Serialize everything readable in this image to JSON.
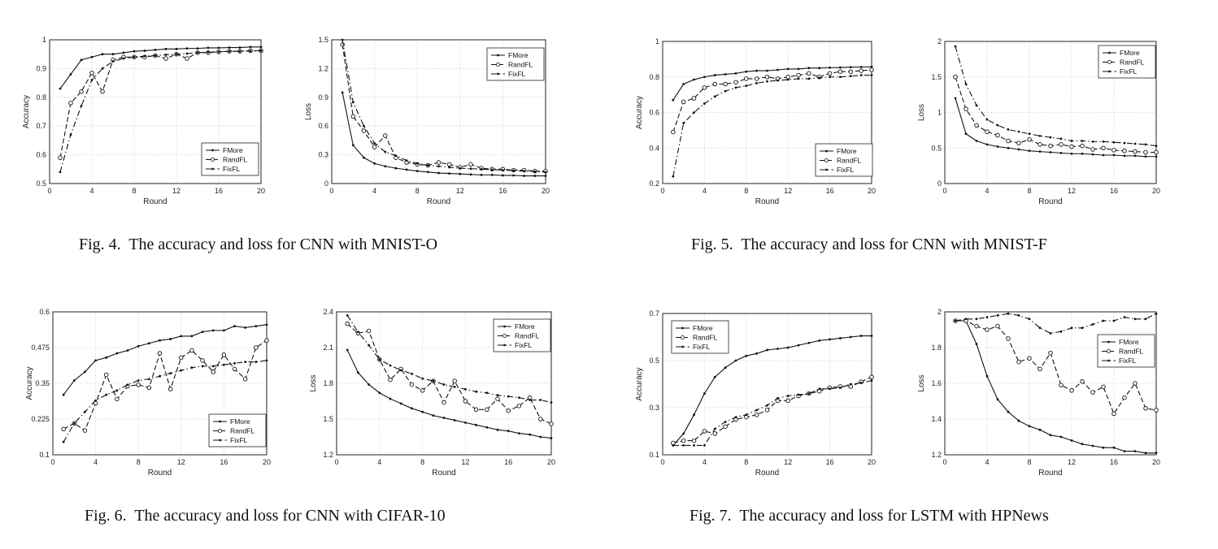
{
  "figures": [
    {
      "caption": "Fig. 4.  The accuracy and loss for CNN with MNIST-O"
    },
    {
      "caption": "Fig. 5.  The accuracy and loss for CNN with MNIST-F"
    },
    {
      "caption": "Fig. 6.  The accuracy and loss for CNN with CIFAR-10"
    },
    {
      "caption": "Fig. 7.  The accuracy and loss for LSTM with HPNews"
    }
  ],
  "chart_data": [
    {
      "type": "line",
      "title": "",
      "xlabel": "Round",
      "ylabel": "Accuracy",
      "xlim": [
        0,
        20
      ],
      "ylim": [
        0.5,
        1
      ],
      "xticks": [
        0,
        4,
        8,
        12,
        16,
        20
      ],
      "yticks": [
        0.5,
        0.6,
        0.7,
        0.8,
        0.9,
        1
      ],
      "ytick_labels": [
        "0.5",
        "0.6",
        "0.7",
        "0.8",
        "0.9",
        "1"
      ],
      "grid": true,
      "legend": "bottom-right",
      "x": [
        1,
        2,
        3,
        4,
        5,
        6,
        7,
        8,
        9,
        10,
        11,
        12,
        13,
        14,
        15,
        16,
        17,
        18,
        19,
        20
      ],
      "series": [
        {
          "name": "FMore",
          "values": [
            0.83,
            0.88,
            0.93,
            0.94,
            0.95,
            0.95,
            0.955,
            0.96,
            0.962,
            0.965,
            0.968,
            0.968,
            0.97,
            0.97,
            0.972,
            0.972,
            0.973,
            0.973,
            0.975,
            0.975
          ]
        },
        {
          "name": "RandFL",
          "values": [
            0.59,
            0.78,
            0.82,
            0.885,
            0.82,
            0.93,
            0.94,
            0.94,
            0.94,
            0.945,
            0.935,
            0.95,
            0.935,
            0.955,
            0.955,
            0.958,
            0.96,
            0.96,
            0.962,
            0.962
          ]
        },
        {
          "name": "FixFL",
          "values": [
            0.54,
            0.67,
            0.77,
            0.86,
            0.9,
            0.925,
            0.935,
            0.94,
            0.943,
            0.945,
            0.948,
            0.95,
            0.952,
            0.955,
            0.957,
            0.958,
            0.96,
            0.96,
            0.961,
            0.962
          ]
        }
      ]
    },
    {
      "type": "line",
      "title": "",
      "xlabel": "Round",
      "ylabel": "Loss",
      "xlim": [
        0,
        20
      ],
      "ylim": [
        0,
        1.5
      ],
      "xticks": [
        0,
        4,
        8,
        12,
        16,
        20
      ],
      "yticks": [
        0,
        0.3,
        0.6,
        0.9,
        1.2,
        1.5
      ],
      "ytick_labels": [
        "0",
        "0.3",
        "0.6",
        "0.9",
        "1.2",
        "1.5"
      ],
      "grid": true,
      "legend": "top-right",
      "x": [
        1,
        2,
        3,
        4,
        5,
        6,
        7,
        8,
        9,
        10,
        11,
        12,
        13,
        14,
        15,
        16,
        17,
        18,
        19,
        20
      ],
      "series": [
        {
          "name": "FMore",
          "values": [
            0.95,
            0.4,
            0.27,
            0.21,
            0.18,
            0.16,
            0.145,
            0.13,
            0.12,
            0.11,
            0.105,
            0.1,
            0.095,
            0.09,
            0.09,
            0.085,
            0.085,
            0.08,
            0.08,
            0.08
          ]
        },
        {
          "name": "RandFL",
          "values": [
            1.45,
            0.7,
            0.55,
            0.38,
            0.5,
            0.27,
            0.22,
            0.2,
            0.19,
            0.22,
            0.2,
            0.17,
            0.2,
            0.16,
            0.15,
            0.15,
            0.14,
            0.14,
            0.13,
            0.13
          ]
        },
        {
          "name": "FixFL",
          "values": [
            1.5,
            0.85,
            0.6,
            0.42,
            0.33,
            0.29,
            0.24,
            0.21,
            0.19,
            0.18,
            0.17,
            0.16,
            0.155,
            0.15,
            0.145,
            0.14,
            0.135,
            0.13,
            0.125,
            0.12
          ]
        }
      ]
    },
    {
      "type": "line",
      "title": "",
      "xlabel": "Round",
      "ylabel": "Accuracy",
      "xlim": [
        0,
        20
      ],
      "ylim": [
        0.2,
        1
      ],
      "xticks": [
        0,
        4,
        8,
        12,
        16,
        20
      ],
      "yticks": [
        0.2,
        0.4,
        0.6,
        0.8,
        1
      ],
      "ytick_labels": [
        "0.2",
        "0.4",
        "0.6",
        "0.8",
        "1"
      ],
      "grid": true,
      "legend": "bottom-right",
      "x": [
        1,
        2,
        3,
        4,
        5,
        6,
        7,
        8,
        9,
        10,
        11,
        12,
        13,
        14,
        15,
        16,
        17,
        18,
        19,
        20
      ],
      "series": [
        {
          "name": "FMore",
          "values": [
            0.67,
            0.76,
            0.785,
            0.8,
            0.81,
            0.815,
            0.82,
            0.83,
            0.835,
            0.835,
            0.84,
            0.845,
            0.845,
            0.85,
            0.85,
            0.852,
            0.853,
            0.855,
            0.856,
            0.857
          ]
        },
        {
          "name": "RandFL",
          "values": [
            0.49,
            0.66,
            0.68,
            0.74,
            0.76,
            0.76,
            0.77,
            0.79,
            0.79,
            0.8,
            0.79,
            0.8,
            0.81,
            0.82,
            0.8,
            0.82,
            0.83,
            0.83,
            0.835,
            0.84
          ]
        },
        {
          "name": "FixFL",
          "values": [
            0.24,
            0.54,
            0.6,
            0.65,
            0.69,
            0.72,
            0.74,
            0.75,
            0.765,
            0.775,
            0.78,
            0.785,
            0.79,
            0.79,
            0.795,
            0.8,
            0.8,
            0.805,
            0.81,
            0.81
          ]
        }
      ]
    },
    {
      "type": "line",
      "title": "",
      "xlabel": "Round",
      "ylabel": "Loss",
      "xlim": [
        0,
        20
      ],
      "ylim": [
        0,
        2
      ],
      "xticks": [
        0,
        4,
        8,
        12,
        16,
        20
      ],
      "yticks": [
        0,
        0.5,
        1,
        1.5,
        2
      ],
      "ytick_labels": [
        "0",
        "0.5",
        "1",
        "1.5",
        "2"
      ],
      "grid": true,
      "legend": "top-right",
      "x": [
        1,
        2,
        3,
        4,
        5,
        6,
        7,
        8,
        9,
        10,
        11,
        12,
        13,
        14,
        15,
        16,
        17,
        18,
        19,
        20
      ],
      "series": [
        {
          "name": "FMore",
          "values": [
            1.2,
            0.7,
            0.6,
            0.55,
            0.52,
            0.5,
            0.48,
            0.46,
            0.45,
            0.44,
            0.43,
            0.42,
            0.42,
            0.41,
            0.4,
            0.4,
            0.39,
            0.39,
            0.38,
            0.38
          ]
        },
        {
          "name": "RandFL",
          "values": [
            1.5,
            1.05,
            0.82,
            0.73,
            0.68,
            0.6,
            0.57,
            0.62,
            0.55,
            0.53,
            0.55,
            0.52,
            0.53,
            0.48,
            0.5,
            0.47,
            0.46,
            0.45,
            0.44,
            0.44
          ]
        },
        {
          "name": "FixFL",
          "values": [
            1.93,
            1.4,
            1.1,
            0.9,
            0.82,
            0.76,
            0.73,
            0.7,
            0.67,
            0.65,
            0.63,
            0.6,
            0.6,
            0.59,
            0.59,
            0.58,
            0.57,
            0.56,
            0.55,
            0.53
          ]
        }
      ]
    },
    {
      "type": "line",
      "title": "",
      "xlabel": "Round",
      "ylabel": "Accuracy",
      "xlim": [
        0,
        20
      ],
      "ylim": [
        0.1,
        0.6
      ],
      "xticks": [
        0,
        4,
        8,
        12,
        16,
        20
      ],
      "yticks": [
        0.1,
        0.225,
        0.35,
        0.475,
        0.6
      ],
      "ytick_labels": [
        "0.1",
        "0.225",
        "0.35",
        "0.475",
        "0.6"
      ],
      "grid": true,
      "legend": "bottom-right",
      "x": [
        1,
        2,
        3,
        4,
        5,
        6,
        7,
        8,
        9,
        10,
        11,
        12,
        13,
        14,
        15,
        16,
        17,
        18,
        19,
        20
      ],
      "series": [
        {
          "name": "FMore",
          "values": [
            0.31,
            0.36,
            0.39,
            0.43,
            0.44,
            0.455,
            0.465,
            0.48,
            0.49,
            0.5,
            0.505,
            0.515,
            0.515,
            0.53,
            0.535,
            0.535,
            0.55,
            0.545,
            0.55,
            0.555
          ]
        },
        {
          "name": "RandFL",
          "values": [
            0.19,
            0.21,
            0.185,
            0.28,
            0.38,
            0.295,
            0.34,
            0.345,
            0.335,
            0.455,
            0.33,
            0.44,
            0.465,
            0.43,
            0.39,
            0.45,
            0.4,
            0.365,
            0.475,
            0.5
          ]
        },
        {
          "name": "FixFL",
          "values": [
            0.145,
            0.21,
            0.25,
            0.29,
            0.31,
            0.325,
            0.345,
            0.36,
            0.365,
            0.375,
            0.385,
            0.395,
            0.405,
            0.41,
            0.41,
            0.415,
            0.42,
            0.425,
            0.425,
            0.43
          ]
        }
      ]
    },
    {
      "type": "line",
      "title": "",
      "xlabel": "Round",
      "ylabel": "Loss",
      "xlim": [
        0,
        20
      ],
      "ylim": [
        1.2,
        2.4
      ],
      "xticks": [
        0,
        4,
        8,
        12,
        16,
        20
      ],
      "yticks": [
        1.2,
        1.5,
        1.8,
        2.1,
        2.4
      ],
      "ytick_labels": [
        "1.2",
        "1.5",
        "1.8",
        "2.1",
        "2.4"
      ],
      "grid": true,
      "legend": "top-right",
      "x": [
        1,
        2,
        3,
        4,
        5,
        6,
        7,
        8,
        9,
        10,
        11,
        12,
        13,
        14,
        15,
        16,
        17,
        18,
        19,
        20
      ],
      "series": [
        {
          "name": "FMore",
          "values": [
            2.08,
            1.89,
            1.79,
            1.72,
            1.67,
            1.63,
            1.59,
            1.56,
            1.53,
            1.51,
            1.49,
            1.47,
            1.45,
            1.43,
            1.41,
            1.4,
            1.38,
            1.37,
            1.35,
            1.34
          ]
        },
        {
          "name": "RandFL",
          "values": [
            2.3,
            2.22,
            2.24,
            2.0,
            1.83,
            1.92,
            1.79,
            1.74,
            1.82,
            1.64,
            1.82,
            1.65,
            1.58,
            1.58,
            1.67,
            1.57,
            1.61,
            1.68,
            1.5,
            1.46
          ]
        },
        {
          "name": "FixFL",
          "values": [
            2.37,
            2.23,
            2.12,
            2.0,
            1.95,
            1.91,
            1.88,
            1.84,
            1.82,
            1.79,
            1.77,
            1.75,
            1.73,
            1.72,
            1.7,
            1.69,
            1.68,
            1.66,
            1.66,
            1.64
          ]
        }
      ]
    },
    {
      "type": "line",
      "title": "",
      "xlabel": "Round",
      "ylabel": "Accuracy",
      "xlim": [
        0,
        20
      ],
      "ylim": [
        0.1,
        0.7
      ],
      "xticks": [
        0,
        4,
        8,
        12,
        16,
        20
      ],
      "yticks": [
        0.1,
        0.3,
        0.5,
        0.7
      ],
      "ytick_labels": [
        "0.1",
        "0.3",
        "0.5",
        "0.7"
      ],
      "grid": true,
      "legend": "top-left",
      "x": [
        1,
        2,
        3,
        4,
        5,
        6,
        7,
        8,
        9,
        10,
        11,
        12,
        13,
        14,
        15,
        16,
        17,
        18,
        19,
        20
      ],
      "series": [
        {
          "name": "FMore",
          "values": [
            0.14,
            0.19,
            0.27,
            0.36,
            0.43,
            0.47,
            0.5,
            0.52,
            0.53,
            0.545,
            0.55,
            0.555,
            0.565,
            0.575,
            0.585,
            0.59,
            0.595,
            0.6,
            0.605,
            0.605
          ]
        },
        {
          "name": "RandFL",
          "values": [
            0.15,
            0.16,
            0.16,
            0.2,
            0.19,
            0.22,
            0.25,
            0.26,
            0.27,
            0.29,
            0.33,
            0.33,
            0.35,
            0.36,
            0.37,
            0.385,
            0.39,
            0.39,
            0.41,
            0.43
          ]
        },
        {
          "name": "FixFL",
          "values": [
            0.14,
            0.14,
            0.14,
            0.14,
            0.21,
            0.24,
            0.26,
            0.27,
            0.29,
            0.31,
            0.34,
            0.35,
            0.355,
            0.36,
            0.38,
            0.38,
            0.385,
            0.4,
            0.405,
            0.415
          ]
        }
      ]
    },
    {
      "type": "line",
      "title": "",
      "xlabel": "Round",
      "ylabel": "Loss",
      "xlim": [
        0,
        20
      ],
      "ylim": [
        1.2,
        2
      ],
      "xticks": [
        0,
        4,
        8,
        12,
        16,
        20
      ],
      "yticks": [
        1.2,
        1.4,
        1.6,
        1.8,
        2
      ],
      "ytick_labels": [
        "1.2",
        "1.4",
        "1.6",
        "1.8",
        "2"
      ],
      "grid": true,
      "legend": "top-right",
      "x": [
        1,
        2,
        3,
        4,
        5,
        6,
        7,
        8,
        9,
        10,
        11,
        12,
        13,
        14,
        15,
        16,
        17,
        18,
        19,
        20
      ],
      "series": [
        {
          "name": "FMore",
          "values": [
            1.95,
            1.95,
            1.82,
            1.64,
            1.51,
            1.44,
            1.39,
            1.36,
            1.34,
            1.31,
            1.3,
            1.28,
            1.26,
            1.25,
            1.24,
            1.24,
            1.22,
            1.22,
            1.21,
            1.21
          ]
        },
        {
          "name": "RandFL",
          "values": [
            1.95,
            1.95,
            1.92,
            1.9,
            1.92,
            1.85,
            1.72,
            1.74,
            1.68,
            1.77,
            1.59,
            1.56,
            1.61,
            1.55,
            1.58,
            1.43,
            1.52,
            1.6,
            1.46,
            1.45
          ]
        },
        {
          "name": "FixFL",
          "values": [
            1.95,
            1.96,
            1.96,
            1.97,
            1.98,
            1.99,
            1.98,
            1.96,
            1.91,
            1.88,
            1.89,
            1.91,
            1.91,
            1.93,
            1.95,
            1.95,
            1.97,
            1.96,
            1.96,
            1.99
          ]
        }
      ]
    }
  ]
}
